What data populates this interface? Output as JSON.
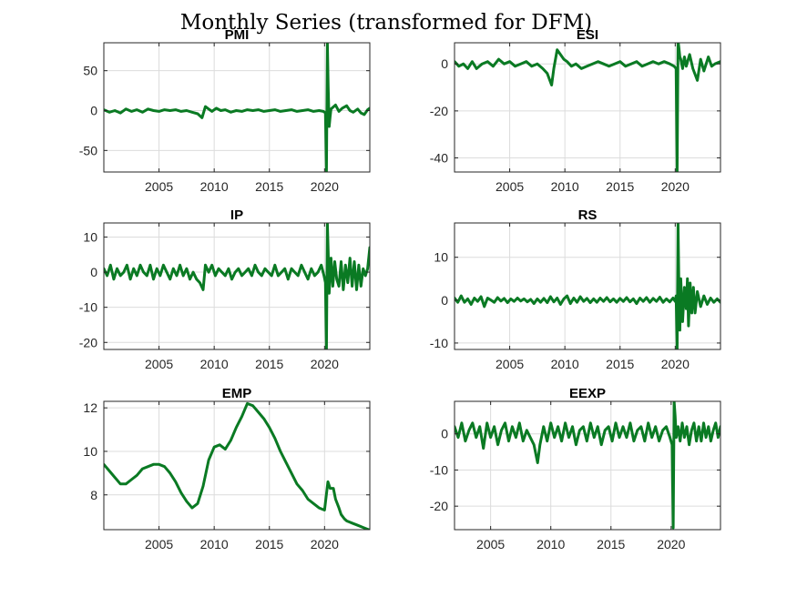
{
  "figure": {
    "title": "Monthly Series (transformed for DFM)",
    "line_color": "#0a7a23"
  },
  "chart_data": [
    {
      "type": "line",
      "title": "PMI",
      "xlim": [
        2000.0,
        2024.1
      ],
      "ylim": [
        -77,
        85
      ],
      "xticks": [
        2005,
        2010,
        2015,
        2020
      ],
      "yticks": [
        -50,
        0,
        50
      ],
      "grid": true,
      "series": [
        {
          "x": [
            2000.0,
            2000.5,
            2001.0,
            2001.5,
            2002.0,
            2002.5,
            2003.0,
            2003.5,
            2004.0,
            2004.5,
            2005.0,
            2005.5,
            2006.0,
            2006.5,
            2007.0,
            2007.5,
            2008.0,
            2008.5,
            2008.9,
            2009.2,
            2009.5,
            2009.8,
            2010.2,
            2010.6,
            2011.0,
            2011.5,
            2012.0,
            2012.5,
            2013.0,
            2013.5,
            2014.0,
            2014.5,
            2015.0,
            2015.5,
            2016.0,
            2016.5,
            2017.0,
            2017.5,
            2018.0,
            2018.5,
            2019.0,
            2019.5,
            2019.9,
            2020.08,
            2020.17,
            2020.25,
            2020.33,
            2020.42,
            2020.5,
            2020.58,
            2020.75,
            2021.0,
            2021.3,
            2021.6,
            2022.0,
            2022.3,
            2022.6,
            2023.0,
            2023.3,
            2023.6,
            2023.9,
            2024.1
          ],
          "y": [
            1,
            -2,
            0,
            -3,
            2,
            -1,
            1,
            -2,
            2,
            0,
            -1,
            1,
            0,
            1,
            -1,
            0,
            -2,
            -4,
            -9,
            5,
            2,
            -1,
            3,
            0,
            1,
            -2,
            0,
            -1,
            1,
            0,
            1,
            -1,
            0,
            1,
            -1,
            0,
            1,
            -1,
            0,
            1,
            -1,
            0,
            -1,
            -3,
            -76,
            85,
            30,
            -20,
            -8,
            2,
            4,
            7,
            -1,
            3,
            6,
            0,
            -2,
            2,
            -3,
            -5,
            1,
            3
          ]
        }
      ]
    },
    {
      "type": "line",
      "title": "ESI",
      "xlim": [
        2000.0,
        2024.1
      ],
      "ylim": [
        -46,
        9
      ],
      "xticks": [
        2005,
        2010,
        2015,
        2020
      ],
      "yticks": [
        -40,
        -20,
        0
      ],
      "grid": true,
      "series": [
        {
          "x": [
            2000.0,
            2000.4,
            2000.8,
            2001.2,
            2001.6,
            2002.0,
            2002.5,
            2003.0,
            2003.5,
            2004.0,
            2004.5,
            2005.0,
            2005.5,
            2006.0,
            2006.5,
            2007.0,
            2007.5,
            2008.0,
            2008.4,
            2008.8,
            2009.0,
            2009.3,
            2009.6,
            2009.9,
            2010.2,
            2010.6,
            2011.0,
            2011.5,
            2012.0,
            2012.5,
            2013.0,
            2013.5,
            2014.0,
            2014.5,
            2015.0,
            2015.5,
            2016.0,
            2016.5,
            2017.0,
            2017.5,
            2018.0,
            2018.5,
            2019.0,
            2019.5,
            2019.9,
            2020.08,
            2020.17,
            2020.25,
            2020.33,
            2020.42,
            2020.5,
            2020.67,
            2020.83,
            2021.0,
            2021.3,
            2021.6,
            2022.0,
            2022.3,
            2022.6,
            2023.0,
            2023.3,
            2023.6,
            2024.1
          ],
          "y": [
            1,
            -1,
            0,
            -2,
            1,
            -2,
            0,
            1,
            -1,
            2,
            0,
            1,
            -1,
            0,
            1,
            -1,
            0,
            -2,
            -4,
            -9,
            -2,
            6,
            4,
            2,
            1,
            -1,
            0,
            -2,
            -1,
            0,
            1,
            0,
            -1,
            0,
            1,
            -1,
            0,
            1,
            -1,
            0,
            1,
            0,
            1,
            0,
            -1,
            -2,
            -46,
            10,
            7,
            3,
            2,
            -2,
            3,
            -1,
            4,
            -2,
            -7,
            2,
            -3,
            3,
            -1,
            0,
            1
          ]
        }
      ]
    },
    {
      "type": "line",
      "title": "IP",
      "xlim": [
        2000.0,
        2024.1
      ],
      "ylim": [
        -22,
        14
      ],
      "xticks": [
        2005,
        2010,
        2015,
        2020
      ],
      "yticks": [
        -20,
        -10,
        0,
        10
      ],
      "grid": true,
      "series": [
        {
          "x": [
            2000.0,
            2000.3,
            2000.6,
            2000.9,
            2001.2,
            2001.5,
            2001.8,
            2002.1,
            2002.4,
            2002.7,
            2003.0,
            2003.3,
            2003.6,
            2003.9,
            2004.2,
            2004.5,
            2004.8,
            2005.1,
            2005.4,
            2005.7,
            2006.0,
            2006.3,
            2006.6,
            2006.9,
            2007.2,
            2007.5,
            2007.8,
            2008.1,
            2008.4,
            2008.7,
            2009.0,
            2009.2,
            2009.5,
            2009.8,
            2010.1,
            2010.4,
            2010.7,
            2011.0,
            2011.3,
            2011.6,
            2011.9,
            2012.2,
            2012.5,
            2012.8,
            2013.1,
            2013.4,
            2013.7,
            2014.0,
            2014.3,
            2014.6,
            2014.9,
            2015.2,
            2015.5,
            2015.8,
            2016.1,
            2016.4,
            2016.7,
            2017.0,
            2017.3,
            2017.6,
            2017.9,
            2018.2,
            2018.5,
            2018.8,
            2019.1,
            2019.4,
            2019.7,
            2019.95,
            2020.08,
            2020.17,
            2020.25,
            2020.33,
            2020.42,
            2020.58,
            2020.75,
            2020.92,
            2021.1,
            2021.3,
            2021.5,
            2021.7,
            2021.9,
            2022.1,
            2022.3,
            2022.5,
            2022.7,
            2022.9,
            2023.1,
            2023.3,
            2023.5,
            2023.7,
            2023.9,
            2024.1
          ],
          "y": [
            1,
            -1,
            2,
            -2,
            1,
            -1,
            0,
            2,
            -2,
            1,
            -1,
            2,
            0,
            -1,
            2,
            -2,
            1,
            -1,
            2,
            0,
            -2,
            1,
            -1,
            2,
            -1,
            1,
            -2,
            0,
            -2,
            -3,
            -5,
            2,
            0,
            2,
            -1,
            1,
            0,
            -1,
            1,
            -2,
            0,
            1,
            -1,
            0,
            1,
            -1,
            2,
            0,
            -1,
            1,
            0,
            -1,
            2,
            -1,
            0,
            1,
            -2,
            1,
            0,
            -1,
            2,
            0,
            -2,
            1,
            -1,
            0,
            2,
            -1,
            -3,
            -22,
            14,
            6,
            -6,
            4,
            -4,
            3,
            -2,
            -4,
            3,
            -5,
            2,
            -3,
            4,
            -4,
            3,
            -5,
            2,
            -4,
            1,
            -1,
            1,
            7
          ]
        }
      ]
    },
    {
      "type": "line",
      "title": "RS",
      "xlim": [
        2000.0,
        2024.1
      ],
      "ylim": [
        -11.5,
        18
      ],
      "xticks": [
        2005,
        2010,
        2015,
        2020
      ],
      "yticks": [
        -10,
        0,
        10
      ],
      "grid": true,
      "series": [
        {
          "x": [
            2000.0,
            2000.3,
            2000.6,
            2000.9,
            2001.2,
            2001.5,
            2001.8,
            2002.1,
            2002.4,
            2002.7,
            2003.0,
            2003.3,
            2003.6,
            2003.9,
            2004.2,
            2004.5,
            2004.8,
            2005.1,
            2005.4,
            2005.7,
            2006.0,
            2006.3,
            2006.6,
            2006.9,
            2007.2,
            2007.5,
            2007.8,
            2008.1,
            2008.4,
            2008.7,
            2009.0,
            2009.3,
            2009.6,
            2009.9,
            2010.2,
            2010.5,
            2010.8,
            2011.1,
            2011.4,
            2011.7,
            2012.0,
            2012.3,
            2012.6,
            2012.9,
            2013.2,
            2013.5,
            2013.8,
            2014.1,
            2014.4,
            2014.7,
            2015.0,
            2015.3,
            2015.6,
            2015.9,
            2016.2,
            2016.5,
            2016.8,
            2017.1,
            2017.4,
            2017.7,
            2018.0,
            2018.3,
            2018.6,
            2018.9,
            2019.2,
            2019.5,
            2019.8,
            2020.0,
            2020.08,
            2020.17,
            2020.25,
            2020.33,
            2020.42,
            2020.5,
            2020.67,
            2020.83,
            2021.0,
            2021.1,
            2021.2,
            2021.35,
            2021.5,
            2021.65,
            2021.8,
            2022.0,
            2022.3,
            2022.6,
            2022.9,
            2023.2,
            2023.5,
            2023.8,
            2024.1
          ],
          "y": [
            0.5,
            -0.5,
            1,
            -0.5,
            0.3,
            -1,
            0.5,
            -0.3,
            0.8,
            -1.5,
            0.5,
            0,
            -0.5,
            0.6,
            -0.2,
            0.4,
            -0.6,
            0.3,
            -0.3,
            0.5,
            -0.2,
            0.3,
            -0.4,
            0.2,
            -0.8,
            0.3,
            -0.5,
            0.4,
            -0.6,
            0.8,
            -0.4,
            0.5,
            -1,
            0.3,
            1,
            -0.8,
            0.5,
            -0.5,
            0.8,
            -0.3,
            0.4,
            -0.6,
            0.3,
            -0.5,
            0.5,
            -0.3,
            0.6,
            -0.4,
            0.3,
            -0.5,
            0.4,
            -0.3,
            0.6,
            -0.4,
            0.3,
            -0.8,
            0.5,
            -0.3,
            0.6,
            -0.5,
            0.4,
            -0.3,
            0.7,
            -0.5,
            0.3,
            -0.4,
            0.5,
            -0.3,
            1,
            -11.5,
            18,
            4,
            -7,
            5,
            -5,
            3,
            -2,
            5,
            -6,
            4,
            -3,
            3,
            -3,
            2,
            -1.5,
            1,
            -1,
            0.5,
            -0.5,
            0.3,
            -0.5
          ]
        }
      ]
    },
    {
      "type": "line",
      "title": "EMP",
      "xlim": [
        2000.0,
        2024.1
      ],
      "ylim": [
        6.4,
        12.3
      ],
      "xticks": [
        2005,
        2010,
        2015,
        2020
      ],
      "yticks": [
        8,
        10,
        12
      ],
      "grid": true,
      "series": [
        {
          "x": [
            2000.0,
            2000.5,
            2001.0,
            2001.5,
            2002.0,
            2002.5,
            2003.0,
            2003.5,
            2004.0,
            2004.5,
            2005.0,
            2005.5,
            2006.0,
            2006.5,
            2007.0,
            2007.5,
            2008.0,
            2008.5,
            2009.0,
            2009.5,
            2010.0,
            2010.5,
            2011.0,
            2011.5,
            2012.0,
            2012.5,
            2013.0,
            2013.5,
            2014.0,
            2014.5,
            2015.0,
            2015.5,
            2016.0,
            2016.5,
            2017.0,
            2017.5,
            2018.0,
            2018.5,
            2019.0,
            2019.5,
            2020.0,
            2020.3,
            2020.5,
            2020.8,
            2021.0,
            2021.3,
            2021.5,
            2021.8,
            2022.0,
            2022.5,
            2023.0,
            2023.5,
            2024.0
          ],
          "y": [
            9.4,
            9.1,
            8.8,
            8.5,
            8.5,
            8.7,
            8.9,
            9.2,
            9.3,
            9.4,
            9.4,
            9.3,
            9.0,
            8.6,
            8.1,
            7.7,
            7.4,
            7.6,
            8.4,
            9.6,
            10.2,
            10.3,
            10.1,
            10.5,
            11.1,
            11.6,
            12.2,
            12.1,
            11.8,
            11.5,
            11.1,
            10.6,
            10.0,
            9.5,
            9.0,
            8.5,
            8.2,
            7.8,
            7.6,
            7.4,
            7.3,
            8.6,
            8.3,
            8.3,
            7.8,
            7.4,
            7.1,
            6.9,
            6.8,
            6.7,
            6.6,
            6.5,
            6.4
          ]
        }
      ]
    },
    {
      "type": "line",
      "title": "EEXP",
      "xlim": [
        2002.0,
        2024.1
      ],
      "ylim": [
        -26.5,
        9
      ],
      "xticks": [
        2005,
        2010,
        2015,
        2020
      ],
      "yticks": [
        -20,
        -10,
        0
      ],
      "grid": true,
      "series": [
        {
          "x": [
            2002.0,
            2002.3,
            2002.6,
            2002.9,
            2003.2,
            2003.5,
            2003.8,
            2004.1,
            2004.4,
            2004.7,
            2005.0,
            2005.3,
            2005.6,
            2005.9,
            2006.2,
            2006.5,
            2006.8,
            2007.1,
            2007.4,
            2007.7,
            2008.0,
            2008.3,
            2008.6,
            2008.9,
            2009.1,
            2009.4,
            2009.7,
            2010.0,
            2010.3,
            2010.6,
            2010.9,
            2011.2,
            2011.5,
            2011.8,
            2012.1,
            2012.4,
            2012.7,
            2013.0,
            2013.3,
            2013.6,
            2013.9,
            2014.2,
            2014.5,
            2014.8,
            2015.1,
            2015.4,
            2015.7,
            2016.0,
            2016.3,
            2016.6,
            2016.9,
            2017.2,
            2017.5,
            2017.8,
            2018.1,
            2018.4,
            2018.7,
            2019.0,
            2019.3,
            2019.6,
            2019.9,
            2020.08,
            2020.17,
            2020.25,
            2020.33,
            2020.42,
            2020.58,
            2020.75,
            2020.92,
            2021.1,
            2021.3,
            2021.5,
            2021.7,
            2021.9,
            2022.1,
            2022.3,
            2022.5,
            2022.7,
            2022.9,
            2023.1,
            2023.3,
            2023.5,
            2023.7,
            2023.9,
            2024.1
          ],
          "y": [
            2,
            -1,
            3,
            -2,
            1,
            3,
            -1,
            2,
            -4,
            3,
            -1,
            2,
            -3,
            1,
            3,
            -2,
            2,
            -1,
            3,
            -2,
            1,
            -1,
            -3,
            -8,
            -3,
            2,
            -2,
            3,
            -1,
            2,
            -2,
            3,
            -1,
            2,
            -3,
            1,
            2,
            -2,
            3,
            -1,
            2,
            -3,
            1,
            2,
            -2,
            3,
            -1,
            2,
            -1,
            3,
            -2,
            1,
            2,
            -2,
            3,
            -1,
            2,
            -2,
            1,
            2,
            -1,
            -3,
            -26,
            9,
            5,
            -1,
            2,
            -2,
            3,
            -1,
            2,
            -3,
            1,
            3,
            -2,
            2,
            -2,
            3,
            -1,
            2,
            -2,
            1,
            3,
            -1,
            2
          ]
        }
      ]
    }
  ]
}
